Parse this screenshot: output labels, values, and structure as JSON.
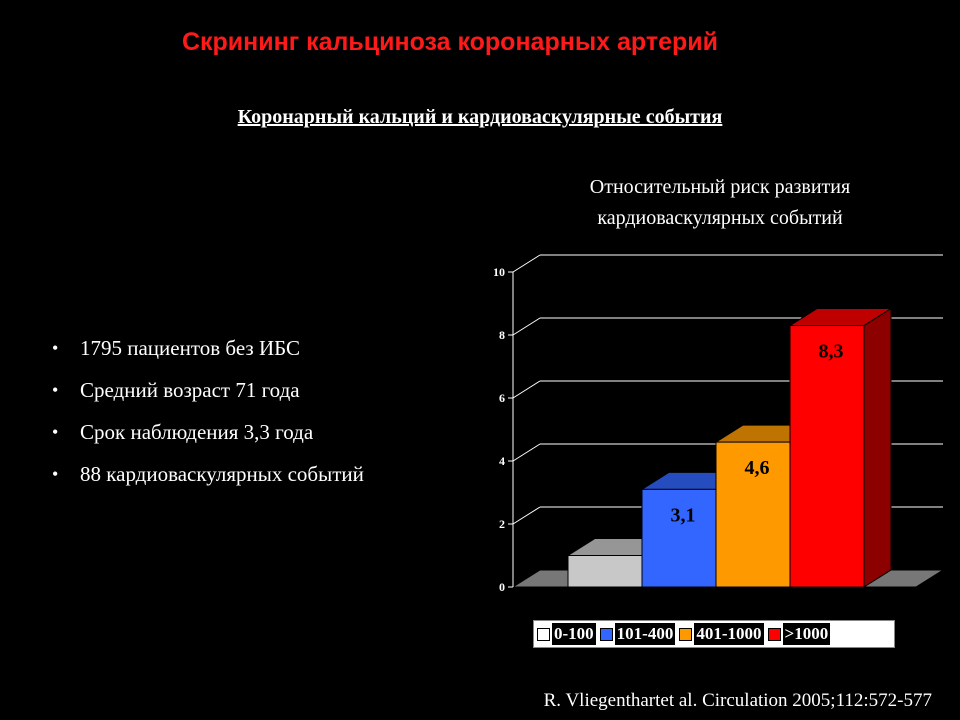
{
  "slide": {
    "title": "Скрининг кальциноза коронарных артерий",
    "subtitle": "Коронарный кальций и кардиоваскулярные события",
    "bullets": [
      "1795 пациентов без ИБС",
      "Средний возраст 71 года",
      "Срок наблюдения 3,3 года",
      "88 кардиоваскулярных событий"
    ],
    "bullet_glyph": "•",
    "citation": "R. Vliegenthartet al. Circulation 2005;112:572-577"
  },
  "chart_data": {
    "type": "bar",
    "title_line1": "Относительный риск развития",
    "title_line2": "кардиоваскулярных событий",
    "categories": [
      "0-100",
      "101-400",
      "401-1000",
      ">1000"
    ],
    "values": [
      1,
      3.1,
      4.6,
      8.3
    ],
    "value_labels": [
      "",
      "3,1",
      "4,6",
      "8,3"
    ],
    "colors": [
      "#c8c8c8",
      "#3366ff",
      "#ff9900",
      "#ff0000"
    ],
    "ylim": [
      0,
      10
    ],
    "yticks": [
      "0",
      "2",
      "4",
      "6",
      "8",
      "10"
    ],
    "grid": true,
    "legend_position": "bottom"
  }
}
